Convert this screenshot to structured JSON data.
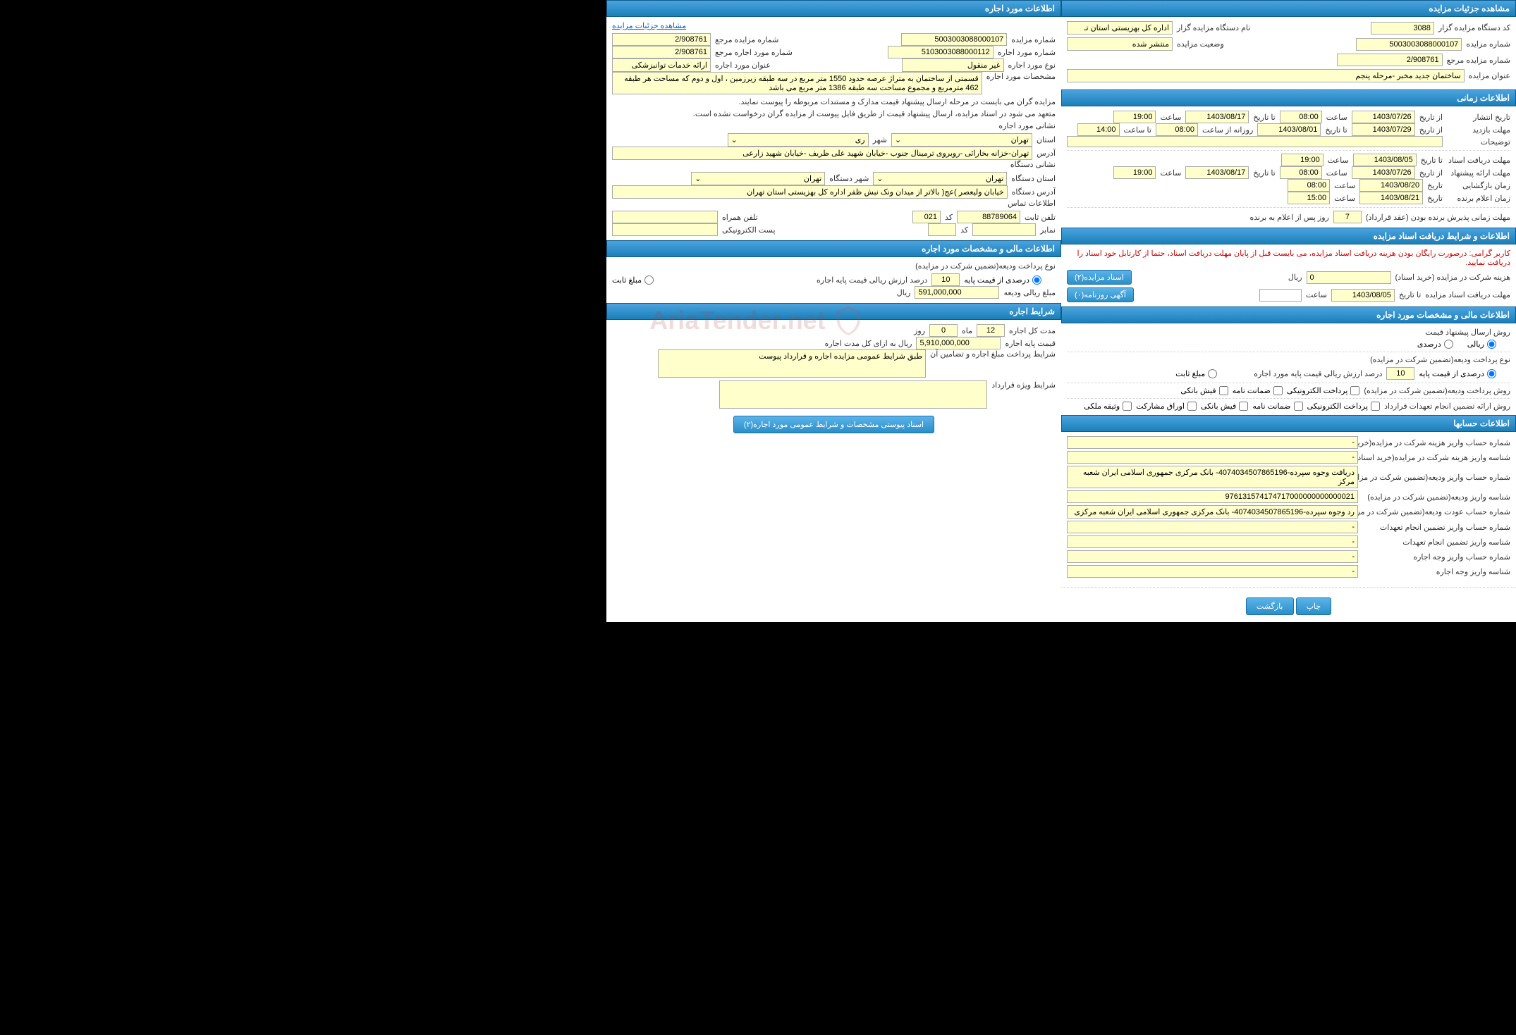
{
  "rightCol": {
    "sec1": {
      "title": "مشاهده جزئیات مزایده",
      "r1": {
        "l1": "کد دستگاه مزایده گزار",
        "v1": "3088",
        "l2": "نام دستگاه مزایده گزار",
        "v2": "اداره کل بهزیستی استان تـ"
      },
      "r2": {
        "l1": "شماره مزایده",
        "v1": "5003003088000107",
        "l2": "وضعیت مزایده",
        "v2": "منتشر شده"
      },
      "r3": {
        "l1": "شماره مزایده مرجع",
        "v1": "2/908761"
      },
      "r4": {
        "l1": "عنوان مزایده",
        "v1": "ساختمان جدید مخبر -مرحله پنجم"
      }
    },
    "sec2": {
      "title": "اطلاعات زمانی",
      "r1": {
        "l1": "تاریخ انتشار",
        "l2": "از تاریخ",
        "v1": "1403/07/26",
        "l3": "ساعت",
        "v2": "08:00",
        "l4": "تا تاریخ",
        "v3": "1403/08/17",
        "l5": "ساعت",
        "v4": "19:00"
      },
      "r2": {
        "l1": "مهلت بازدید",
        "l2": "از تاریخ",
        "v1": "1403/07/29",
        "l4": "تا تاریخ",
        "v3": "1403/08/01",
        "l3": "روزانه از ساعت",
        "v2": "08:00",
        "l5": "تا ساعت",
        "v4": "14:00"
      },
      "r3": {
        "l1": "توضیحات",
        "v1": ""
      },
      "r4": {
        "l1": "مهلت دریافت اسناد",
        "l2": "تا تاریخ",
        "v1": "1403/08/05",
        "l3": "ساعت",
        "v2": "19:00"
      },
      "r5": {
        "l1": "مهلت ارائه پیشنهاد",
        "l2": "از تاریخ",
        "v1": "1403/07/26",
        "l3": "ساعت",
        "v2": "08:00",
        "l4": "تا تاریخ",
        "v3": "1403/08/17",
        "l5": "ساعت",
        "v4": "19:00"
      },
      "r6": {
        "l1": "زمان بازگشایی",
        "l2": "تاریخ",
        "v1": "1403/08/20",
        "l3": "ساعت",
        "v2": "08:00"
      },
      "r7": {
        "l1": "زمان اعلام برنده",
        "l2": "تاریخ",
        "v1": "1403/08/21",
        "l3": "ساعت",
        "v2": "15:00"
      },
      "r8": {
        "l1": "مهلت زمانی پذیرش برنده بودن (عقد قرارداد)",
        "v1": "7",
        "l2": "روز پس از اعلام به برنده"
      }
    },
    "sec3": {
      "title": "اطلاعات و شرایط دریافت اسناد مزایده",
      "warn": "کاربر گرامی: درصورت رایگان بودن هزینه دریافت اسناد مزایده، می بایست قبل از پایان مهلت دریافت اسناد، حتما از کارتابل خود اسناد را دریافت نمایید.",
      "r1": {
        "l1": "هزینه شرکت در مزایده (خرید اسناد)",
        "v1": "0",
        "l2": "ریال",
        "btn": "اسناد مزایده(٢)"
      },
      "r2": {
        "l1": "مهلت دریافت اسناد مزایده",
        "l2": "تا تاریخ",
        "v1": "1403/08/05",
        "l3": "ساعت",
        "v2": "",
        "btn": "آگهی روزنامه(٠)"
      }
    },
    "sec4": {
      "title": "اطلاعات مالی و مشخصات مورد اجاره",
      "g1": {
        "l": "روش ارسال پیشنهاد قیمت",
        "o1": "ریالی",
        "o2": "درصدی"
      },
      "g2": {
        "l": "نوع پرداخت ودیعه(تضمین شرکت در مزایده)",
        "o1": "درصدی از قیمت پایه",
        "v1": "10",
        "l2": "درصد ارزش ریالی قیمت پایه مورد اجاره",
        "o2": "مبلغ ثابت"
      },
      "g3": {
        "l": "روش پرداخت ودیعه(تضمین شرکت در مزایده)",
        "o1": "پرداخت الکترونیکی",
        "o2": "ضمانت نامه",
        "o3": "فیش بانکی"
      },
      "g4": {
        "l": "روش ارائه تضمین انجام تعهدات قرارداد",
        "o1": "پرداخت الکترونیکی",
        "o2": "ضمانت نامه",
        "o3": "فیش بانکی",
        "o4": "اوراق مشارکت",
        "o5": "وثیقه ملکی"
      }
    },
    "sec5": {
      "title": "اطلاعات حسابها",
      "rows": [
        {
          "l": "شماره حساب واریز هزینه شرکت در مزایده(خرید اسناد)",
          "v": "-"
        },
        {
          "l": "شناسه واریز هزینه شرکت در مزایده(خرید اسناد)",
          "v": "-"
        },
        {
          "l": "شماره حساب واریز ودیعه(تضمین شرکت در مزایده)",
          "v": "دریافت وجوه سپرده-4074034507865196- بانک مرکزی جمهوری اسلامی ایران شعبه مرکز"
        },
        {
          "l": "شناسه واریز ودیعه(تضمین شرکت در مزایده)",
          "v": "976131574174717000000000000021"
        },
        {
          "l": "شماره حساب عودت ودیعه(تضمین شرکت در مزایده)",
          "v": "رد وجوه سپرده-4074034507865196- بانک مرکزی جمهوری اسلامی ایران شعبه مرکزی"
        },
        {
          "l": "شماره حساب واریز تضمین انجام تعهدات",
          "v": "-"
        },
        {
          "l": "شناسه واریز تضمین انجام تعهدات",
          "v": "-"
        },
        {
          "l": "شماره حساب واریز وجه اجاره",
          "v": "-"
        },
        {
          "l": "شناسه واریز وجه اجاره",
          "v": "-"
        }
      ]
    },
    "btns": {
      "print": "چاپ",
      "back": "بازگشت"
    }
  },
  "leftCol": {
    "sec1": {
      "title": "اطلاعات مورد اجاره",
      "link": "مشاهده جزئیات مزایده",
      "r1": {
        "l1": "شماره مزایده",
        "v1": "5003003088000107",
        "l2": "شماره مزایده مرجع",
        "v2": "2/908761"
      },
      "r2": {
        "l1": "شماره مورد اجاره",
        "v1": "5103003088000112",
        "l2": "شماره مورد اجاره مرجع",
        "v2": "2/908761"
      },
      "r3": {
        "l1": "نوع مورد اجاره",
        "v1": "غیر منقول",
        "l2": "عنوان مورد اجاره",
        "v2": "ارائه خدمات توانبزشکی"
      },
      "r4": {
        "l1": "مشخصات مورد اجاره",
        "v1": "قسمتی از ساختمان به متراژ عرصه حدود 1550 متر مربع در سه طبقه زیرزمین ، اول و دوم که مساحت هر طبقه 462 مترمربع و مجموع مساحت سه طبقه 1386 متر مربع می باشد"
      },
      "note1": "مزایده گران می بایست در مرحله ارسال پیشنهاد قیمت مدارک و مستندات مربوطه را پیوست نمایند.",
      "note2": "متعهد می شود در اسناد مزایده، ارسال پیشنهاد قیمت از طریق فایل پیوست از مزایده گران درخواست نشده است.",
      "r5": {
        "l1": "نشانی مورد اجاره"
      },
      "r6": {
        "l1": "استان",
        "v1": "تهران",
        "l2": "شهر",
        "v2": "ری"
      },
      "r7": {
        "l1": "آدرس",
        "v1": "تهران-خزانه بخارائی -روبروی ترمینال جنوب -خیابان شهید علی ظریف -خیابان شهید زارعی"
      },
      "r8": {
        "l1": "نشانی دستگاه"
      },
      "r9": {
        "l1": "استان دستگاه",
        "v1": "تهران",
        "l2": "شهر دستگاه",
        "v2": "تهران"
      },
      "r10": {
        "l1": "آدرس دستگاه",
        "v1": "خیابان ولیعصر )عج( بالاتر از میدان ونک نبش ظفر اداره کل بهزیستی استان تهران"
      },
      "r11": {
        "l1": "اطلاعات تماس"
      },
      "r12": {
        "l1": "تلفن ثابت",
        "v1": "88789064",
        "l2": "کد",
        "v2": "021",
        "l3": "تلفن همراه",
        "v3": ""
      },
      "r13": {
        "l1": "نمابر",
        "v1": "",
        "l2": "کد",
        "v2": "",
        "l3": "پست الکترونیکی",
        "v3": ""
      }
    },
    "sec2": {
      "title": "اطلاعات مالی و مشخصات مورد اجاره",
      "r1": {
        "l": "نوع پرداخت ودیعه(تضمین شرکت در مزایده)"
      },
      "r2": {
        "o1": "درصدی از قیمت پایه",
        "v1": "10",
        "l2": "درصد ارزش ریالی قیمت پایه اجاره",
        "o2": "مبلغ ثابت"
      },
      "r3": {
        "l1": "مبلغ ریالی ودیعه",
        "v1": "591,000,000",
        "l2": "ریال"
      }
    },
    "sec3": {
      "title": "شرایط اجاره",
      "r1": {
        "l1": "مدت کل اجاره",
        "v1": "12",
        "l2": "ماه",
        "v2": "0",
        "l3": "روز"
      },
      "r2": {
        "l1": "قیمت پایه اجاره",
        "v1": "5,910,000,000",
        "l2": "ریال به ازای کل مدت اجاره"
      },
      "r3": {
        "l1": "شرایط پرداخت مبلغ اجاره و تضامین آن",
        "v1": "طبق شرایط عمومی مزایده اجاره و قرارداد پیوست"
      },
      "r4": {
        "l1": "شرایط ویژه قرارداد",
        "v1": ""
      },
      "btn": "اسناد پیوستی مشخصات و شرایط عمومی مورد اجاره(٢)"
    }
  },
  "watermark": "AriaTender.net"
}
